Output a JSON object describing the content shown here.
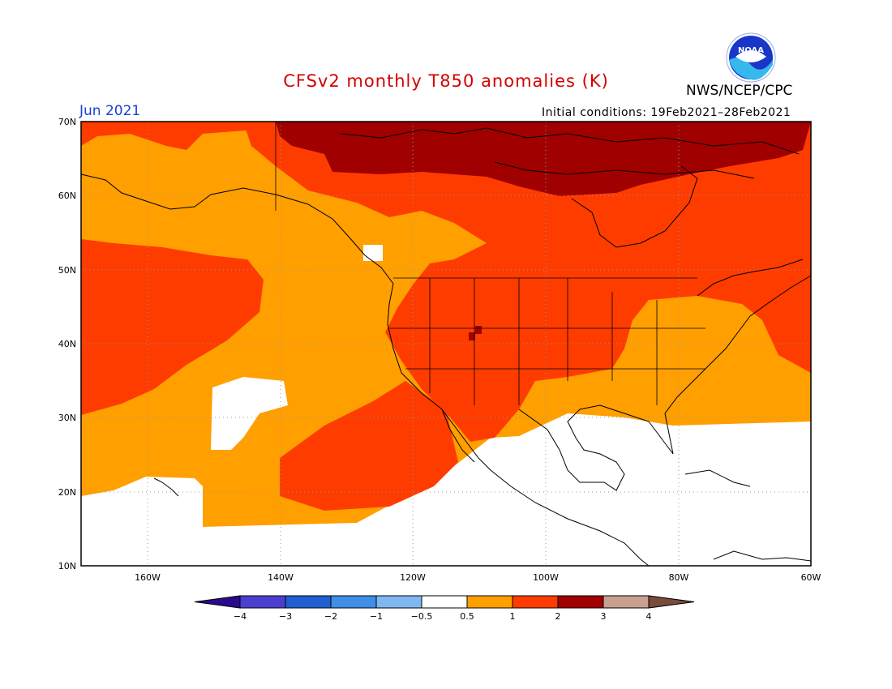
{
  "header": {
    "title": "CFSv2 monthly T850 anomalies (K)",
    "agency": "NWS/NCEP/CPC",
    "month": "Jun 2021",
    "initial_conditions": "Initial conditions: 19Feb2021–28Feb2021",
    "logo_text": "NOAA"
  },
  "map": {
    "lat_labels": [
      "70N",
      "60N",
      "50N",
      "40N",
      "30N",
      "20N",
      "10N"
    ],
    "lon_labels": [
      "160W",
      "140W",
      "120W",
      "100W",
      "80W",
      "60W"
    ]
  },
  "legend": {
    "colors": [
      "#2a0a8c",
      "#4a3fd0",
      "#1f5fd0",
      "#3f8ee8",
      "#7fb8f0",
      "#ffffff",
      "#ff9f00",
      "#ff3c00",
      "#a00000",
      "#c8a090",
      "#7a4a3a"
    ],
    "labels": [
      "−4",
      "−3",
      "−2",
      "−1",
      "−0.5",
      "0.5",
      "1",
      "2",
      "3",
      "4"
    ]
  }
}
